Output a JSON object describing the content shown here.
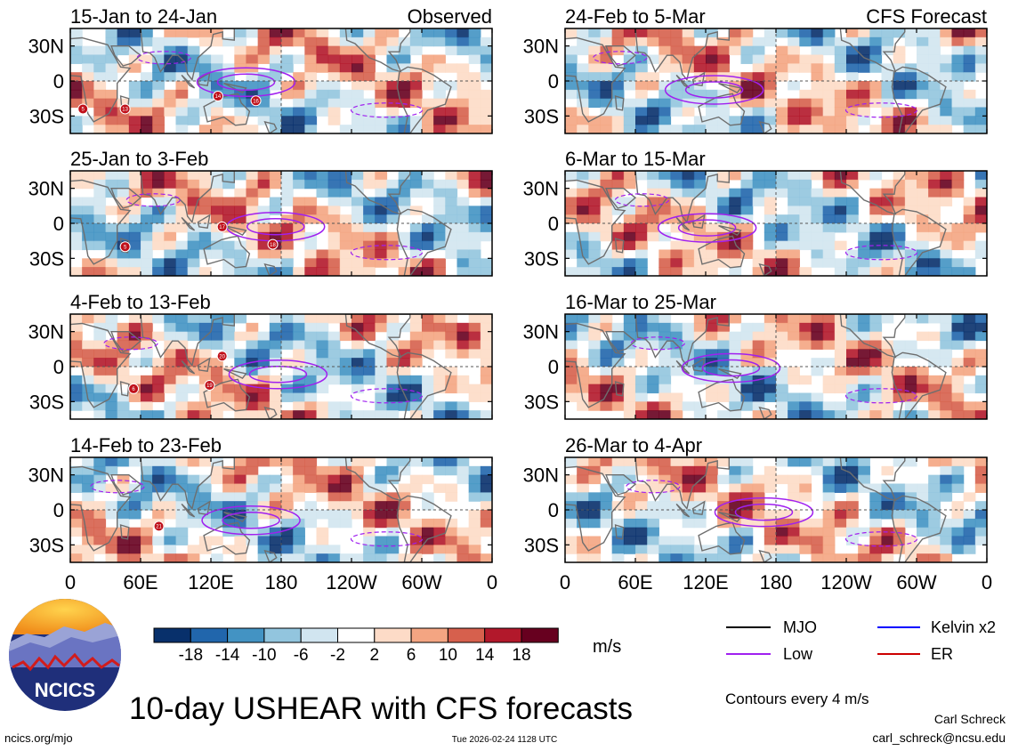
{
  "chart_data": {
    "type": "heatmap",
    "title": "10-day USHEAR with CFS forecasts",
    "variable": "USHEAR",
    "units": "m/s",
    "contour_note": "Contours every 4 m/s",
    "x_ticks": [
      "0",
      "60E",
      "120E",
      "180",
      "120W",
      "60W",
      "0"
    ],
    "y_ticks": [
      "30N",
      "0",
      "30S"
    ],
    "colorbar": {
      "labels": [
        "-18",
        "-14",
        "-10",
        "-6",
        "-2",
        "2",
        "6",
        "10",
        "14",
        "18"
      ],
      "colors": [
        "#08306b",
        "#2166ac",
        "#4393c3",
        "#92c5de",
        "#d1e5f0",
        "#ffffff",
        "#fddbc7",
        "#f4a582",
        "#d6604d",
        "#b2182b",
        "#67001f"
      ]
    },
    "legend": [
      {
        "label": "MJO",
        "color": "#000000"
      },
      {
        "label": "Kelvin x2",
        "color": "#0000ff"
      },
      {
        "label": "Low",
        "color": "#a020f0"
      },
      {
        "label": "ER",
        "color": "#cc0000"
      }
    ],
    "panels": [
      {
        "period": "15-Jan to 24-Jan",
        "tag": "Observed",
        "storms": [
          [
            "5",
            3,
            -24
          ],
          [
            "13",
            13,
            -24
          ],
          [
            "14",
            35,
            -13
          ],
          [
            "16",
            44,
            -17
          ]
        ]
      },
      {
        "period": "25-Jan to 3-Feb",
        "tag": "",
        "storms": [
          [
            "5",
            13,
            -20
          ],
          [
            "17",
            36,
            -3
          ],
          [
            "18",
            48,
            -18
          ]
        ]
      },
      {
        "period": "4-Feb to 13-Feb",
        "tag": "",
        "storms": [
          [
            "6",
            15,
            -19
          ],
          [
            "19",
            33,
            -16
          ],
          [
            "20",
            36,
            9
          ]
        ]
      },
      {
        "period": "14-Feb to 23-Feb",
        "tag": "",
        "storms": [
          [
            "21",
            21,
            -14
          ]
        ]
      },
      {
        "period": "24-Feb to 5-Mar",
        "tag": "CFS Forecast",
        "storms": []
      },
      {
        "period": "6-Mar to 15-Mar",
        "tag": "",
        "storms": []
      },
      {
        "period": "16-Mar to 25-Mar",
        "tag": "",
        "storms": []
      },
      {
        "period": "26-Mar to 4-Apr",
        "tag": "",
        "storms": []
      }
    ]
  },
  "logo": {
    "text": "NCICS"
  },
  "footer": {
    "url": "ncics.org/mjo",
    "timestamp": "Tue 2026-02-24 1128 UTC",
    "author": "Carl Schreck",
    "email": "carl_schreck@ncsu.edu"
  },
  "colors": {
    "land": "#6e6e6e",
    "grid": "#555555"
  }
}
